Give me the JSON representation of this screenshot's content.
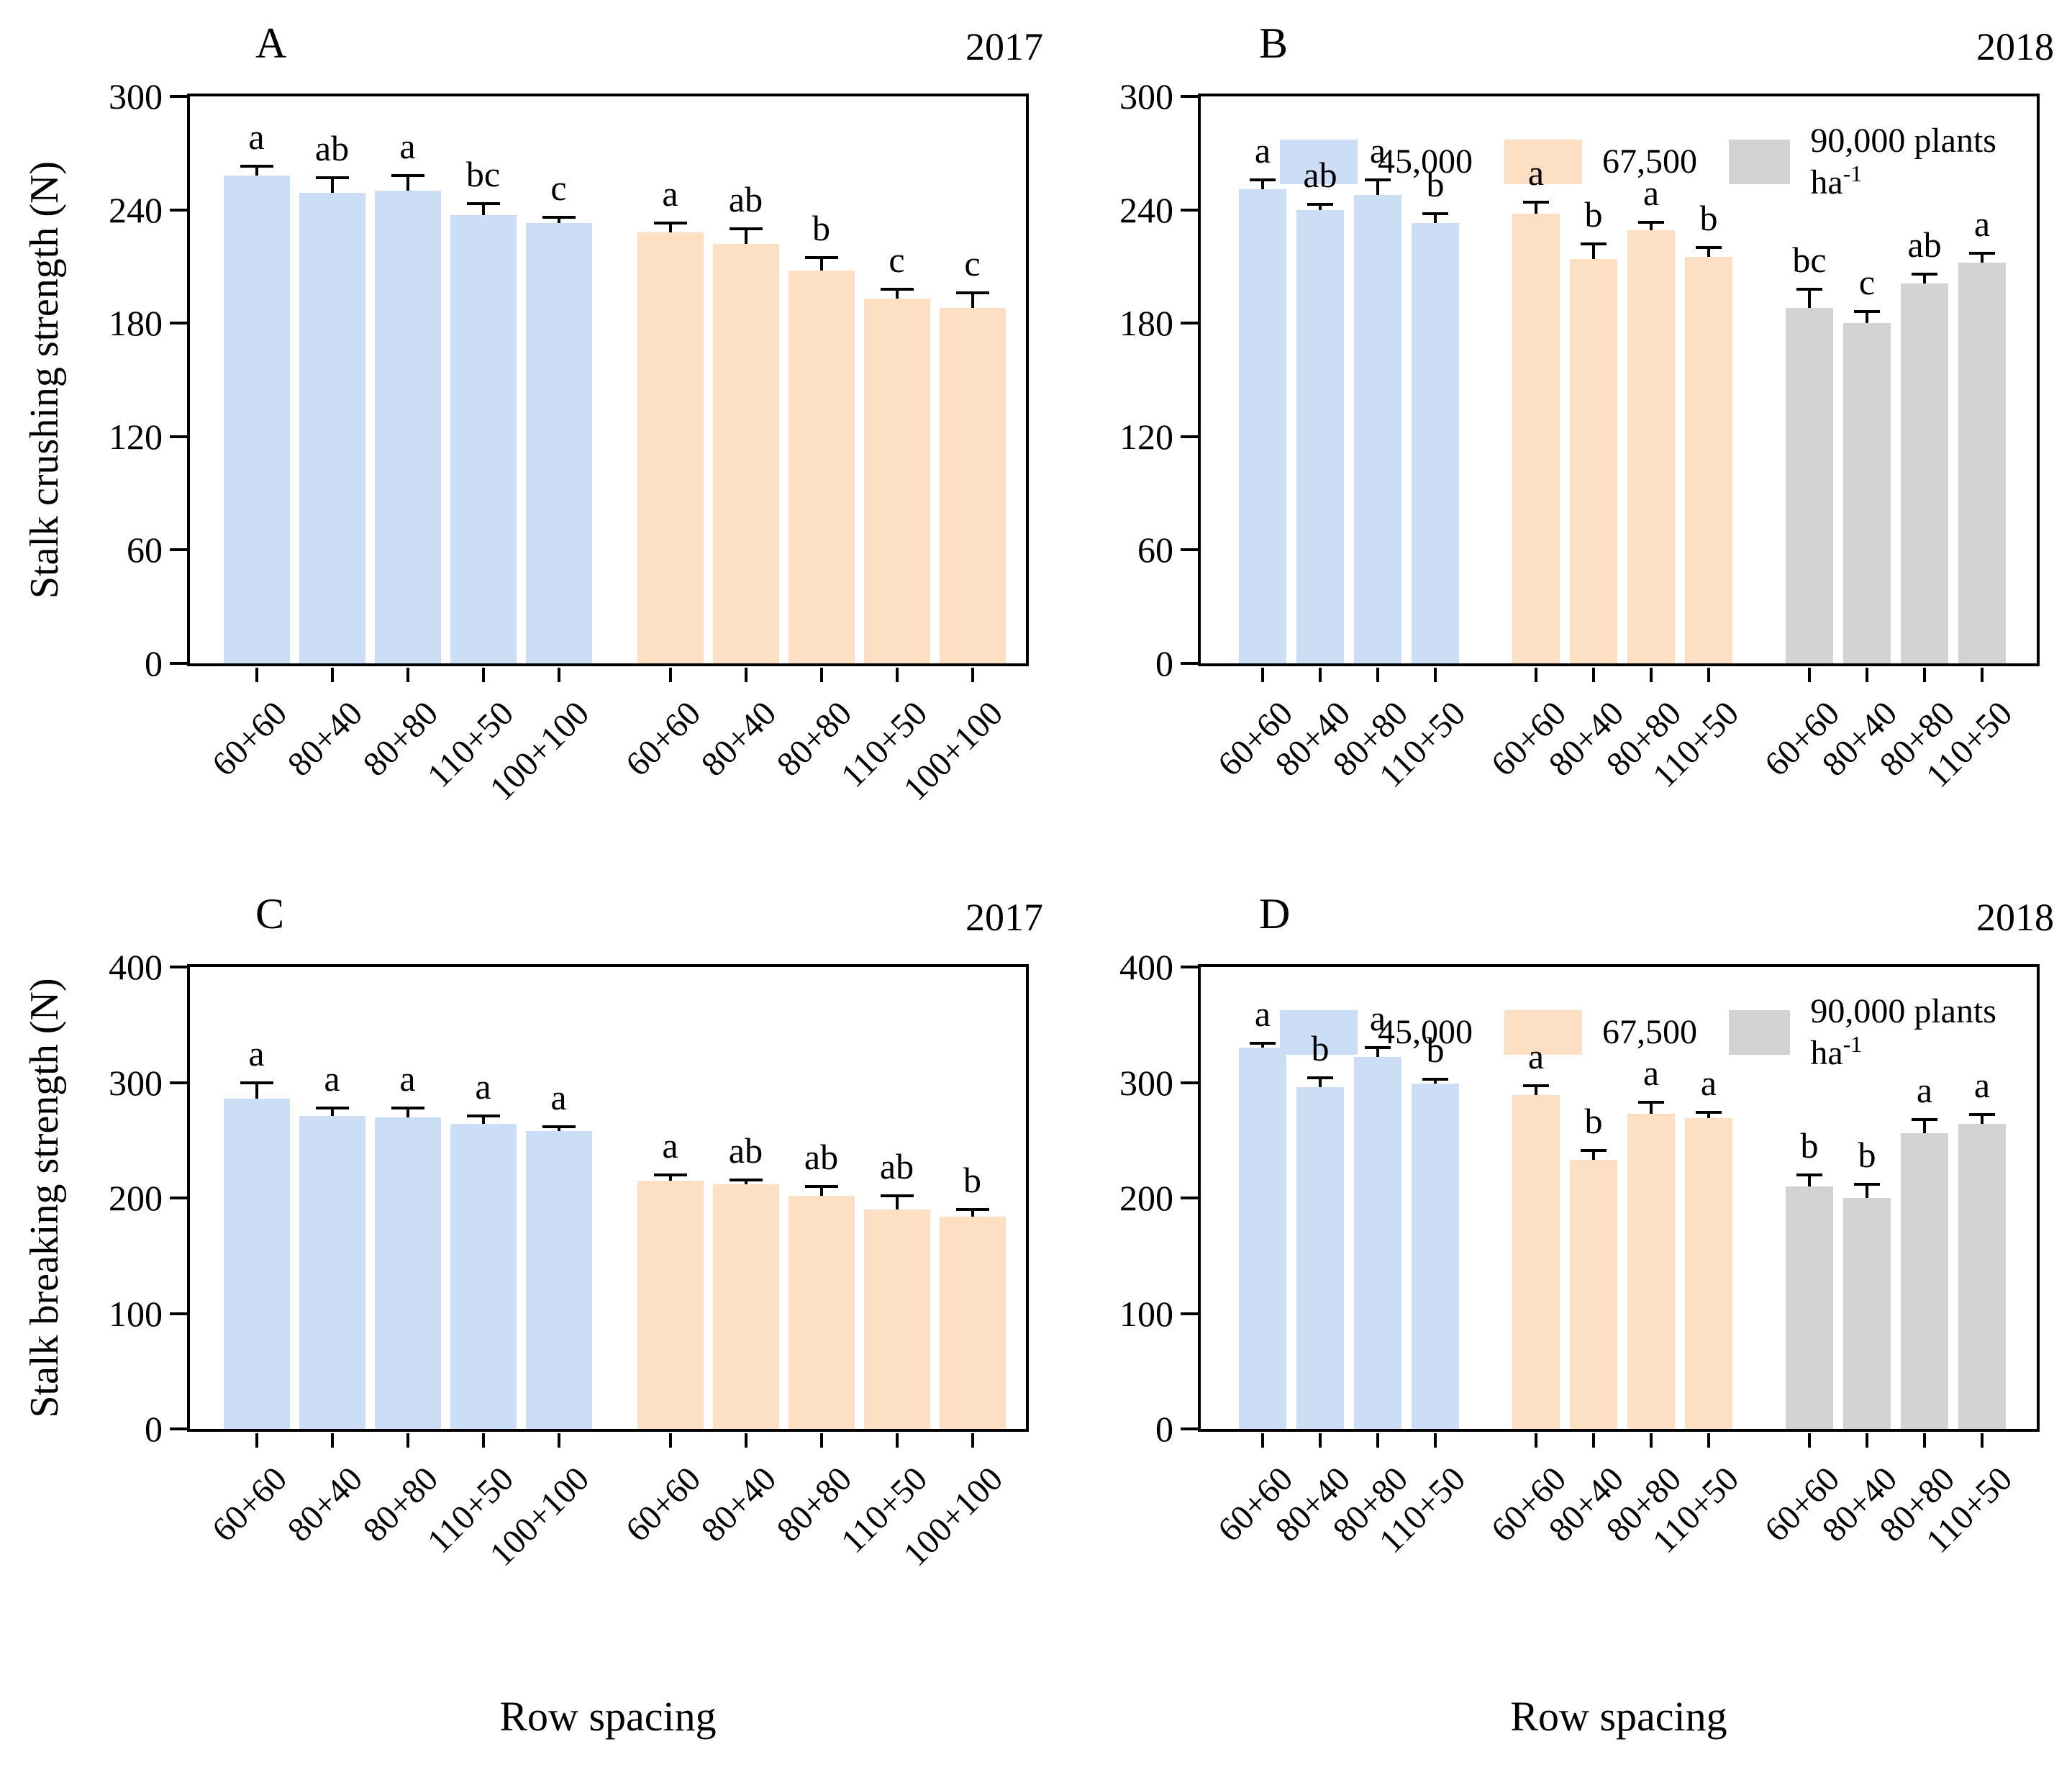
{
  "figure": {
    "xlabel": "Row spacing",
    "colors": {
      "density_45000": "#cbdef5",
      "density_67500": "#fde0c4",
      "density_90000": "#d3d3d3",
      "axis": "#000000"
    },
    "legend": {
      "items": [
        {
          "label": "45,000",
          "sup": "",
          "color": "#cbdef5"
        },
        {
          "label": "67,500",
          "sup": "",
          "color": "#fde0c4"
        },
        {
          "label": "90,000 plants ha",
          "sup": "-1",
          "color": "#d3d3d3"
        }
      ]
    }
  },
  "chart_data": [
    {
      "type": "bar",
      "id": "A",
      "year": "2017",
      "ylabel": "Stalk crushing strength (N)",
      "xlabel": "Row spacing",
      "ylim": [
        0,
        300
      ],
      "yticks": [
        300,
        240,
        180,
        120,
        60,
        0
      ],
      "grid": false,
      "legend_visible": false,
      "categories": [
        "60+60",
        "80+40",
        "80+80",
        "110+50",
        "100+100"
      ],
      "series": [
        {
          "name": "45,000",
          "values": [
            258,
            249,
            250,
            237,
            233
          ],
          "errors": [
            5,
            8,
            8,
            6,
            3
          ],
          "letters": [
            "a",
            "ab",
            "a",
            "bc",
            "c"
          ]
        },
        {
          "name": "67,500",
          "values": [
            228,
            222,
            208,
            193,
            188
          ],
          "errors": [
            5,
            8,
            7,
            5,
            8
          ],
          "letters": [
            "a",
            "ab",
            "b",
            "c",
            "c"
          ]
        }
      ]
    },
    {
      "type": "bar",
      "id": "B",
      "year": "2018",
      "ylabel": "Stalk crushing strength (N)",
      "xlabel": "Row spacing",
      "ylim": [
        0,
        300
      ],
      "yticks": [
        300,
        240,
        180,
        120,
        60,
        0
      ],
      "grid": false,
      "legend_visible": true,
      "categories": [
        "60+60",
        "80+40",
        "80+80",
        "110+50"
      ],
      "series": [
        {
          "name": "45,000",
          "values": [
            251,
            240,
            248,
            233
          ],
          "errors": [
            5,
            3,
            8,
            5
          ],
          "letters": [
            "a",
            "ab",
            "a",
            "b"
          ]
        },
        {
          "name": "67,500",
          "values": [
            238,
            214,
            229,
            215
          ],
          "errors": [
            6,
            8,
            4,
            5
          ],
          "letters": [
            "a",
            "b",
            "a",
            "b"
          ]
        },
        {
          "name": "90,000",
          "values": [
            188,
            180,
            201,
            212
          ],
          "errors": [
            10,
            6,
            5,
            5
          ],
          "letters": [
            "bc",
            "c",
            "ab",
            "a"
          ]
        }
      ]
    },
    {
      "type": "bar",
      "id": "C",
      "year": "2017",
      "ylabel": "Stalk breaking strength (N)",
      "xlabel": "Row spacing",
      "ylim": [
        0,
        400
      ],
      "yticks": [
        400,
        300,
        200,
        100,
        0
      ],
      "grid": false,
      "legend_visible": false,
      "categories": [
        "60+60",
        "80+40",
        "80+80",
        "110+50",
        "100+100"
      ],
      "series": [
        {
          "name": "45,000",
          "values": [
            286,
            271,
            270,
            264,
            258
          ],
          "errors": [
            14,
            7,
            8,
            7,
            4
          ],
          "letters": [
            "a",
            "a",
            "a",
            "a",
            "a"
          ]
        },
        {
          "name": "67,500",
          "values": [
            215,
            212,
            202,
            190,
            184
          ],
          "errors": [
            5,
            4,
            8,
            12,
            6
          ],
          "letters": [
            "a",
            "ab",
            "ab",
            "ab",
            "b"
          ]
        }
      ]
    },
    {
      "type": "bar",
      "id": "D",
      "year": "2018",
      "ylabel": "Stalk breaking strength (N)",
      "xlabel": "Row spacing",
      "ylim": [
        0,
        400
      ],
      "yticks": [
        400,
        300,
        200,
        100,
        0
      ],
      "grid": false,
      "legend_visible": true,
      "categories": [
        "60+60",
        "80+40",
        "80+80",
        "110+50"
      ],
      "series": [
        {
          "name": "45,000",
          "values": [
            330,
            296,
            322,
            299
          ],
          "errors": [
            4,
            8,
            8,
            4
          ],
          "letters": [
            "a",
            "b",
            "a",
            "b"
          ]
        },
        {
          "name": "67,500",
          "values": [
            289,
            233,
            273,
            269
          ],
          "errors": [
            8,
            8,
            10,
            5
          ],
          "letters": [
            "a",
            "b",
            "a",
            "a"
          ]
        },
        {
          "name": "90,000",
          "values": [
            210,
            200,
            256,
            264
          ],
          "errors": [
            10,
            12,
            12,
            8
          ],
          "letters": [
            "b",
            "b",
            "a",
            "a"
          ]
        }
      ]
    }
  ]
}
